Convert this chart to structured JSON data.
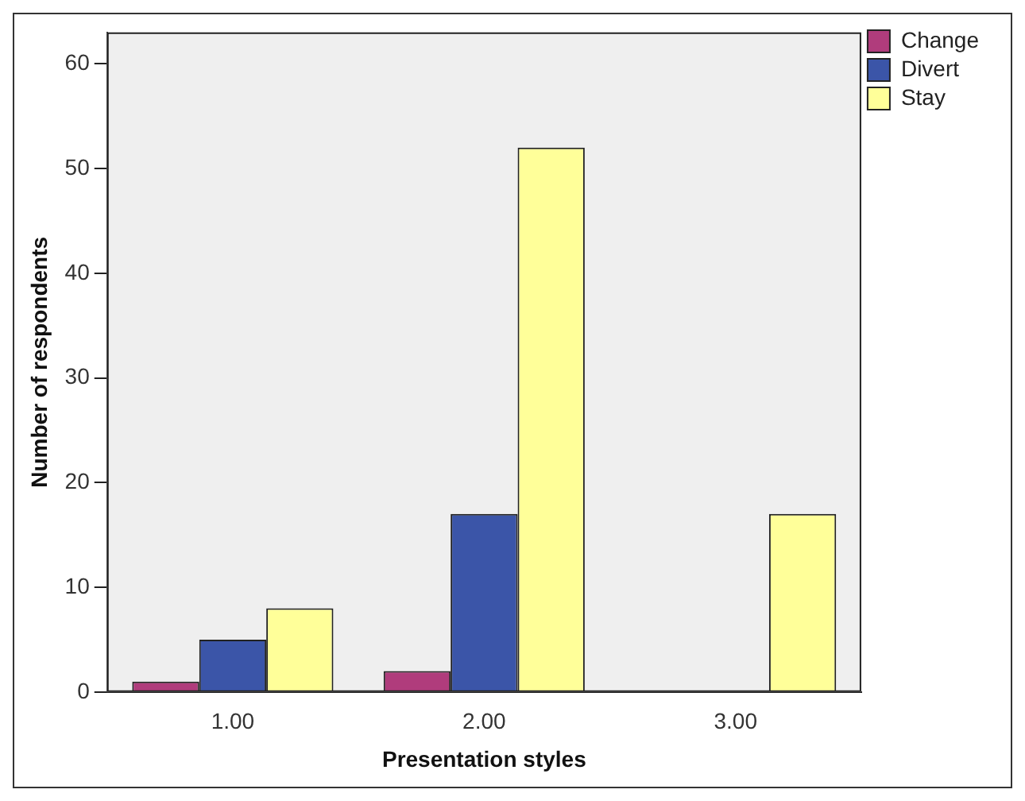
{
  "chart_data": {
    "type": "bar",
    "xlabel": "Presentation styles",
    "ylabel": "Number of respondents",
    "categories": [
      "1.00",
      "2.00",
      "3.00"
    ],
    "series": [
      {
        "name": "Change",
        "color": "#b03c7c",
        "values": [
          1,
          2,
          null
        ]
      },
      {
        "name": "Divert",
        "color": "#3b55a8",
        "values": [
          5,
          17,
          null
        ]
      },
      {
        "name": "Stay",
        "color": "#ffff99",
        "values": [
          8,
          52,
          17
        ]
      }
    ],
    "ylim": [
      0,
      63
    ],
    "yticks": [
      0,
      10,
      20,
      30,
      40,
      50,
      60
    ],
    "grid": false,
    "legend": "top right"
  }
}
